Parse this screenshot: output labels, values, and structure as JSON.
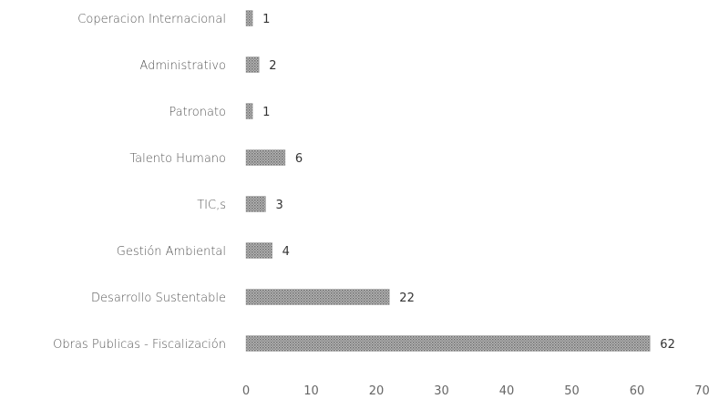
{
  "chart_data": {
    "type": "bar",
    "orientation": "horizontal",
    "categories": [
      "Coperacion Internacional",
      "Administrativo",
      "Patronato",
      "Talento Humano",
      "TIC,s",
      "Gestión Ambiental",
      "Desarrollo Sustentable",
      "Obras Publicas - Fiscalización"
    ],
    "values": [
      1,
      2,
      1,
      6,
      3,
      4,
      22,
      62
    ],
    "value_labels": [
      "1",
      "2",
      "1",
      "6",
      "3",
      "4",
      "22",
      "62"
    ],
    "xlim": [
      0,
      70
    ],
    "xticks": [
      "0",
      "10",
      "20",
      "30",
      "40",
      "50",
      "60",
      "70"
    ],
    "grid": false,
    "legend": "none",
    "bar_color": "#9a9a9a"
  }
}
